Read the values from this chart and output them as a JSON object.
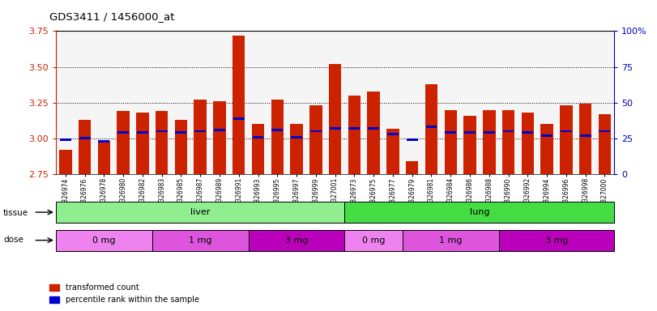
{
  "title": "GDS3411 / 1456000_at",
  "samples": [
    "GSM326974",
    "GSM326976",
    "GSM326978",
    "GSM326980",
    "GSM326982",
    "GSM326983",
    "GSM326985",
    "GSM326987",
    "GSM326989",
    "GSM326991",
    "GSM326993",
    "GSM326995",
    "GSM326997",
    "GSM326999",
    "GSM327001",
    "GSM326973",
    "GSM326975",
    "GSM326977",
    "GSM326979",
    "GSM326981",
    "GSM326984",
    "GSM326986",
    "GSM326988",
    "GSM326990",
    "GSM326992",
    "GSM326994",
    "GSM326996",
    "GSM326998",
    "GSM327000"
  ],
  "red_values": [
    2.92,
    3.13,
    2.98,
    3.19,
    3.18,
    3.19,
    3.13,
    3.27,
    3.26,
    3.72,
    3.1,
    3.27,
    3.1,
    3.23,
    3.52,
    3.3,
    3.33,
    3.07,
    2.84,
    3.38,
    3.2,
    3.16,
    3.2,
    3.2,
    3.18,
    3.1,
    3.23,
    3.24,
    3.17
  ],
  "blue_values": [
    2.99,
    3.0,
    2.98,
    3.04,
    3.04,
    3.05,
    3.04,
    3.05,
    3.06,
    3.14,
    3.01,
    3.06,
    3.01,
    3.05,
    3.07,
    3.07,
    3.07,
    3.03,
    2.99,
    3.08,
    3.04,
    3.04,
    3.04,
    3.05,
    3.04,
    3.02,
    3.05,
    3.02,
    3.05
  ],
  "ymin": 2.75,
  "ymax": 3.75,
  "yticks": [
    2.75,
    3.0,
    3.25,
    3.5,
    3.75
  ],
  "grid_vals": [
    3.0,
    3.25,
    3.5
  ],
  "right_yticks": [
    0,
    25,
    50,
    75,
    100
  ],
  "tissue_groups": [
    {
      "label": "liver",
      "start": 0,
      "end": 15,
      "color": "#90EE90"
    },
    {
      "label": "lung",
      "start": 15,
      "end": 29,
      "color": "#44DD44"
    }
  ],
  "dose_groups": [
    {
      "label": "0 mg",
      "start": 0,
      "end": 5,
      "color": "#EE82EE"
    },
    {
      "label": "1 mg",
      "start": 5,
      "end": 10,
      "color": "#DD55DD"
    },
    {
      "label": "3 mg",
      "start": 10,
      "end": 15,
      "color": "#BB00BB"
    },
    {
      "label": "0 mg",
      "start": 15,
      "end": 18,
      "color": "#EE82EE"
    },
    {
      "label": "1 mg",
      "start": 18,
      "end": 23,
      "color": "#DD55DD"
    },
    {
      "label": "3 mg",
      "start": 23,
      "end": 29,
      "color": "#BB00BB"
    }
  ],
  "bar_color": "#CC2200",
  "blue_color": "#0000CC",
  "red_axis_color": "#CC2200",
  "blue_axis_color": "#0000BB"
}
